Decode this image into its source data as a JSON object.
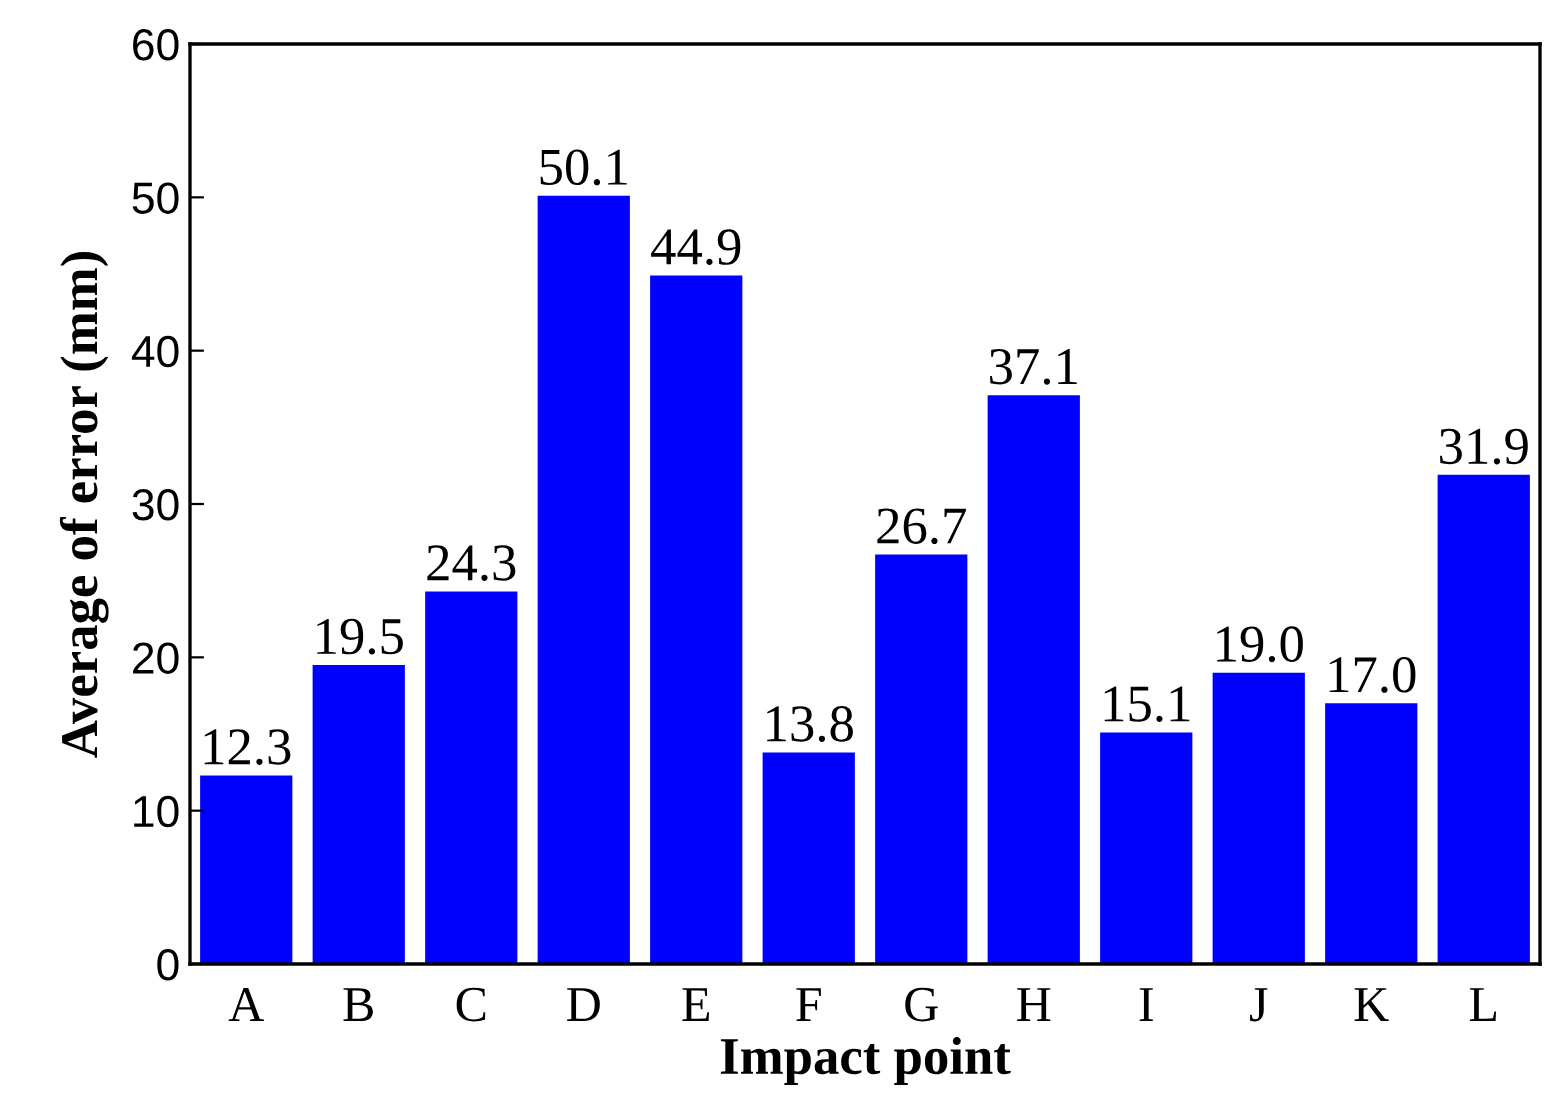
{
  "chart_data": {
    "type": "bar",
    "xlabel": "Impact point",
    "ylabel": "Average of error (mm)",
    "categories": [
      "A",
      "B",
      "C",
      "D",
      "E",
      "F",
      "G",
      "H",
      "I",
      "J",
      "K",
      "L"
    ],
    "values": [
      12.3,
      19.5,
      24.3,
      50.1,
      44.9,
      13.8,
      26.7,
      37.1,
      15.1,
      19.0,
      17.0,
      31.9
    ],
    "value_labels": [
      "12.3",
      "19.5",
      "24.3",
      "50.1",
      "44.9",
      "13.8",
      "26.7",
      "37.1",
      "15.1",
      "19.0",
      "17.0",
      "31.9"
    ],
    "color": "#0000ff",
    "ylim": [
      0,
      60
    ],
    "yticks": [
      0,
      10,
      20,
      30,
      40,
      50,
      60
    ],
    "grid": false
  }
}
